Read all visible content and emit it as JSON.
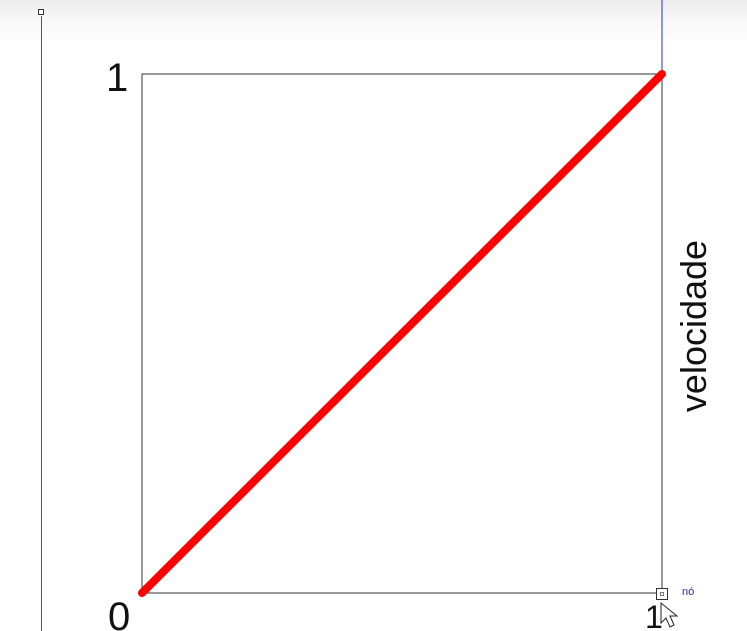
{
  "curve_editor": {
    "y_max_label": "1",
    "origin_label": "0",
    "x_max_label": "1",
    "property_label": "velocidade",
    "node_label": "nó",
    "colors": {
      "curve": "#ff0000",
      "frame": "#333333",
      "vertical_guide": "#b8b85a",
      "top_guide": "#2233cc",
      "node_text": "#2a2aa8"
    }
  },
  "chart_data": {
    "type": "line",
    "x": [
      0,
      1
    ],
    "series": [
      {
        "values": [
          0,
          1
        ]
      }
    ],
    "xlim": [
      0,
      1
    ],
    "ylim": [
      0,
      1
    ],
    "y_tick_labels": [
      "0",
      "1"
    ],
    "x_tick_labels": [
      "0",
      "1"
    ],
    "ylabel": "velocidade",
    "grid": false
  }
}
